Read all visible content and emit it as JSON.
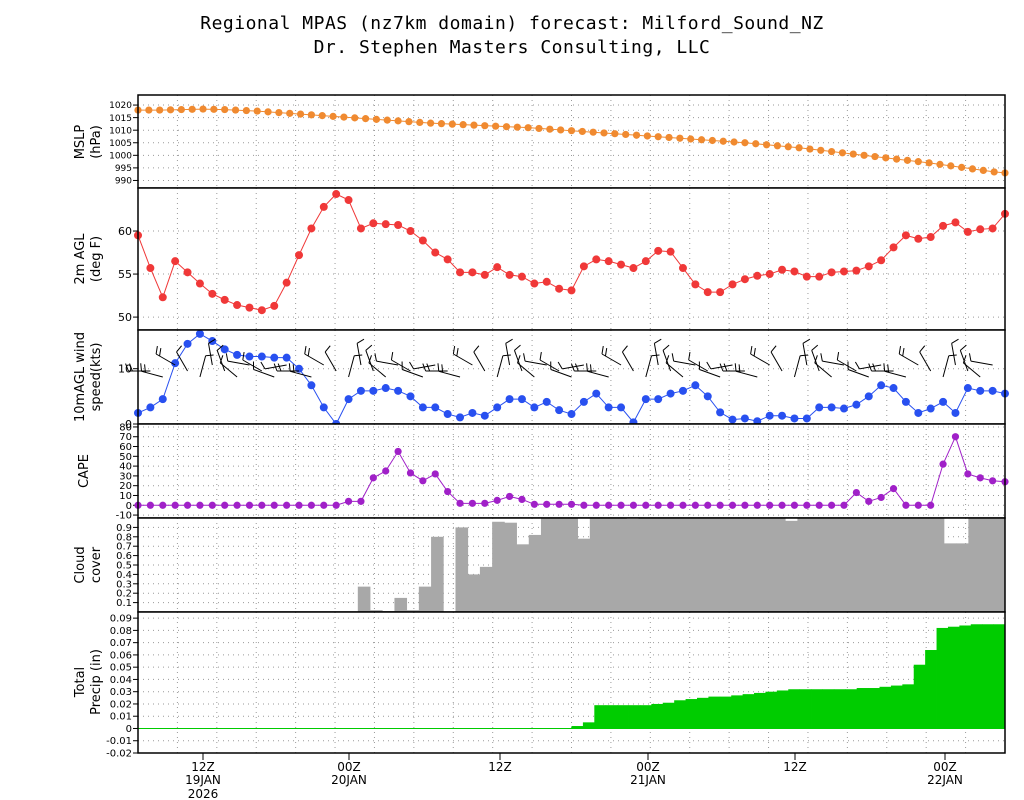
{
  "header": {
    "title": "Regional MPAS (nz7km domain) forecast: Milford_Sound_NZ",
    "subtitle": "Dr. Stephen Masters Consulting, LLC"
  },
  "colors": {
    "mslp": "#f08a30",
    "temp": "#f03838",
    "wind": "#2850f0",
    "cape": "#a020c8",
    "cloud": "#a8a8a8",
    "precip": "#00cc00"
  },
  "chart_data": [
    {
      "type": "line",
      "ylabel": "MSLP (hPa)",
      "ylim": [
        987,
        1024
      ],
      "yticks": [
        990,
        995,
        1000,
        1005,
        1010,
        1015,
        1020
      ],
      "values": [
        1018.0,
        1018.0,
        1018.0,
        1018.1,
        1018.2,
        1018.3,
        1018.4,
        1018.3,
        1018.2,
        1018.0,
        1017.8,
        1017.6,
        1017.3,
        1017.0,
        1016.7,
        1016.4,
        1016.1,
        1015.8,
        1015.5,
        1015.2,
        1014.9,
        1014.6,
        1014.3,
        1014.0,
        1013.7,
        1013.4,
        1013.1,
        1012.8,
        1012.6,
        1012.4,
        1012.2,
        1012.0,
        1011.8,
        1011.6,
        1011.4,
        1011.2,
        1011.0,
        1010.7,
        1010.4,
        1010.1,
        1009.8,
        1009.5,
        1009.2,
        1008.9,
        1008.6,
        1008.3,
        1008.0,
        1007.7,
        1007.4,
        1007.1,
        1006.8,
        1006.5,
        1006.2,
        1005.9,
        1005.6,
        1005.3,
        1005.0,
        1004.6,
        1004.2,
        1003.8,
        1003.4,
        1003.0,
        1002.5,
        1002.0,
        1001.5,
        1001.0,
        1000.5,
        1000.0,
        999.5,
        999.0,
        998.5,
        998.0,
        997.5,
        997.0,
        996.4,
        995.8,
        995.2,
        994.6,
        994.0,
        993.4,
        993.0
      ]
    },
    {
      "type": "line",
      "ylabel": "2m AGL (deg F)",
      "ylim": [
        48.5,
        65
      ],
      "yticks": [
        50,
        55,
        60
      ],
      "values": [
        59.5,
        55.7,
        52.3,
        56.5,
        55.2,
        53.9,
        52.7,
        52.0,
        51.4,
        51.1,
        50.8,
        51.3,
        54.0,
        57.2,
        60.3,
        62.8,
        64.3,
        63.6,
        60.3,
        60.9,
        60.8,
        60.7,
        60.0,
        58.9,
        57.5,
        56.7,
        55.2,
        55.2,
        54.9,
        55.8,
        54.9,
        54.7,
        53.9,
        54.1,
        53.3,
        53.1,
        55.9,
        56.7,
        56.5,
        56.1,
        55.7,
        56.5,
        57.7,
        57.6,
        55.7,
        53.8,
        52.9,
        52.9,
        53.8,
        54.4,
        54.8,
        55.0,
        55.5,
        55.3,
        54.7,
        54.7,
        55.2,
        55.3,
        55.4,
        55.9,
        56.6,
        58.1,
        59.5,
        59.1,
        59.3,
        60.6,
        61.0,
        59.9,
        60.2,
        60.3,
        62.0
      ]
    },
    {
      "type": "line",
      "ylabel": "10mAGL wind speed(kts)",
      "ylim": [
        0,
        17
      ],
      "yticks": [
        0,
        10
      ],
      "values": [
        2,
        3,
        4.5,
        11,
        14.5,
        16.3,
        15,
        13.5,
        12.5,
        12.2,
        12.2,
        12,
        12,
        10,
        7,
        3,
        0,
        4.5,
        6,
        6,
        6.5,
        6,
        5,
        3,
        3,
        1.8,
        1.2,
        2,
        1.5,
        3,
        4.5,
        4.5,
        3,
        4,
        2.5,
        1.8,
        4,
        5.5,
        3,
        3,
        0.3,
        4.5,
        4.5,
        5.5,
        6,
        7,
        5,
        2.1,
        0.8,
        1,
        0.5,
        1.5,
        1.5,
        1,
        1,
        3,
        3,
        2.8,
        3.5,
        5,
        7,
        6.5,
        4,
        2,
        2.8,
        4,
        2,
        6.5,
        6,
        6,
        5.5
      ]
    },
    {
      "type": "line",
      "ylabel": "CAPE",
      "ylim": [
        -13,
        83
      ],
      "yticks": [
        -10,
        0,
        10,
        20,
        30,
        40,
        50,
        60,
        70,
        80
      ],
      "values": [
        0,
        0,
        0,
        0,
        0,
        0,
        0,
        0,
        0,
        0,
        0,
        0,
        0,
        0,
        0,
        0,
        0,
        4,
        4,
        28,
        35,
        55,
        33,
        25,
        32,
        14,
        2,
        2,
        2,
        5,
        9,
        6,
        1,
        1,
        1,
        1,
        0,
        0,
        0,
        0,
        0,
        0,
        0,
        0,
        0,
        0,
        0,
        0,
        0,
        0,
        0,
        0,
        0,
        0,
        0,
        0,
        0,
        0,
        13,
        4,
        8,
        17,
        0,
        0,
        0,
        42,
        70,
        32,
        28,
        25,
        24
      ]
    },
    {
      "type": "bar",
      "ylabel": "Cloud cover",
      "ylim": [
        0,
        1
      ],
      "yticks": [
        0.1,
        0.2,
        0.3,
        0.4,
        0.5,
        0.6,
        0.7,
        0.8,
        0.9
      ],
      "values": [
        0,
        0,
        0,
        0,
        0,
        0,
        0,
        0,
        0,
        0,
        0,
        0,
        0,
        0,
        0,
        0,
        0,
        0,
        0.27,
        0.02,
        0.01,
        0.15,
        0.02,
        0.27,
        0.8,
        0,
        0.9,
        0.4,
        0.48,
        0.96,
        0.95,
        0.72,
        0.82,
        1,
        1,
        1,
        0.78,
        1,
        1,
        1,
        0.99,
        1,
        1,
        1,
        1,
        1,
        1,
        1,
        1,
        1,
        1,
        1,
        1,
        0.97,
        1,
        1,
        1,
        1,
        1,
        1,
        1,
        1,
        1,
        1,
        1,
        1,
        0.73,
        0.73,
        1,
        1,
        1
      ]
    },
    {
      "type": "area",
      "ylabel": "Total Precip (in)",
      "ylim": [
        -0.02,
        0.095
      ],
      "yticks": [
        -0.02,
        -0.01,
        0,
        0.01,
        0.02,
        0.03,
        0.04,
        0.05,
        0.06,
        0.07,
        0.08,
        0.09
      ],
      "values": [
        0,
        0,
        0,
        0,
        0,
        0,
        0,
        0,
        0,
        0,
        0,
        0,
        0,
        0,
        0,
        0,
        0,
        0,
        0,
        0,
        0,
        0,
        0,
        0,
        0,
        0,
        0,
        0,
        0,
        0,
        0,
        0,
        0,
        0,
        0,
        0,
        0,
        0,
        0.002,
        0.005,
        0.019,
        0.019,
        0.019,
        0.019,
        0.019,
        0.02,
        0.021,
        0.023,
        0.024,
        0.025,
        0.026,
        0.026,
        0.027,
        0.028,
        0.029,
        0.03,
        0.031,
        0.032,
        0.032,
        0.032,
        0.032,
        0.032,
        0.032,
        0.033,
        0.033,
        0.034,
        0.035,
        0.036,
        0.052,
        0.064,
        0.082,
        0.083,
        0.084,
        0.085,
        0.085,
        0.085
      ]
    }
  ],
  "time_axis": {
    "ticks": [
      {
        "label": "12Z",
        "date": "19JAN",
        "year": "2026"
      },
      {
        "label": "00Z",
        "date": "20JAN",
        "year": ""
      },
      {
        "label": "12Z",
        "date": "",
        "year": ""
      },
      {
        "label": "00Z",
        "date": "21JAN",
        "year": ""
      },
      {
        "label": "12Z",
        "date": "",
        "year": ""
      },
      {
        "label": "00Z",
        "date": "22JAN",
        "year": ""
      }
    ]
  },
  "wind_barbs": [
    {
      "dir": 260,
      "spd": 10
    },
    {
      "dir": 270,
      "spd": 15
    },
    {
      "dir": 285,
      "spd": 15
    },
    {
      "dir": 300,
      "spd": 15
    },
    {
      "dir": 330,
      "spd": 10
    },
    {
      "dir": 15,
      "spd": 5
    },
    {
      "dir": 350,
      "spd": 5
    },
    {
      "dir": 340,
      "spd": 10
    },
    {
      "dir": 310,
      "spd": 5
    },
    {
      "dir": 280,
      "spd": 5
    },
    {
      "dir": 300,
      "spd": 10
    },
    {
      "dir": 290,
      "spd": 5
    }
  ]
}
